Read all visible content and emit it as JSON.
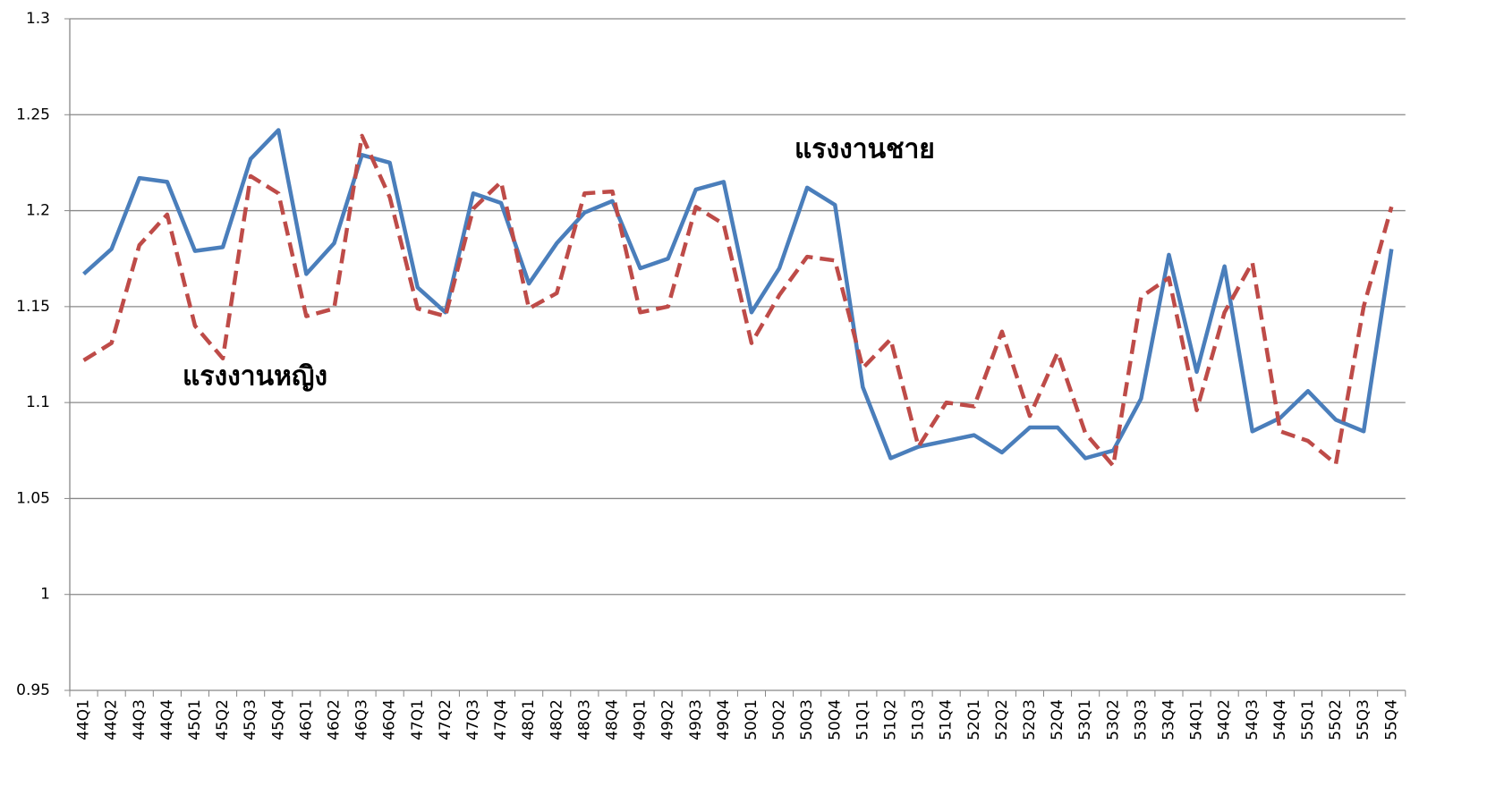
{
  "chart_data": {
    "type": "line",
    "categories": [
      "44Q1",
      "44Q2",
      "44Q3",
      "44Q4",
      "45Q1",
      "45Q2",
      "45Q3",
      "45Q4",
      "46Q1",
      "46Q2",
      "46Q3",
      "46Q4",
      "47Q1",
      "47Q2",
      "47Q3",
      "47Q4",
      "48Q1",
      "48Q2",
      "48Q3",
      "48Q4",
      "49Q1",
      "49Q2",
      "49Q3",
      "49Q4",
      "50Q1",
      "50Q2",
      "50Q3",
      "50Q4",
      "51Q1",
      "51Q2",
      "51Q3",
      "51Q4",
      "52Q1",
      "52Q2",
      "52Q3",
      "52Q4",
      "53Q1",
      "53Q2",
      "53Q3",
      "53Q4",
      "54Q1",
      "54Q2",
      "54Q3",
      "54Q4",
      "55Q1",
      "55Q2",
      "55Q3",
      "55Q4"
    ],
    "series": [
      {
        "name": "แรงงานชาย",
        "color": "#4a7ebb",
        "dashed": false,
        "values": [
          1.167,
          1.18,
          1.217,
          1.215,
          1.179,
          1.181,
          1.227,
          1.242,
          1.167,
          1.183,
          1.229,
          1.225,
          1.16,
          1.147,
          1.209,
          1.204,
          1.162,
          1.183,
          1.199,
          1.205,
          1.17,
          1.175,
          1.211,
          1.215,
          1.147,
          1.17,
          1.212,
          1.203,
          1.108,
          1.071,
          1.077,
          1.08,
          1.083,
          1.074,
          1.087,
          1.087,
          1.071,
          1.075,
          1.102,
          1.177,
          1.116,
          1.171,
          1.085,
          1.092,
          1.106,
          1.091,
          1.085,
          1.18
        ]
      },
      {
        "name": "แรงงานหญิง",
        "color": "#be4b48",
        "dashed": true,
        "values": [
          1.122,
          1.131,
          1.182,
          1.198,
          1.14,
          1.123,
          1.218,
          1.209,
          1.145,
          1.149,
          1.239,
          1.207,
          1.149,
          1.145,
          1.201,
          1.215,
          1.149,
          1.157,
          1.209,
          1.21,
          1.147,
          1.15,
          1.202,
          1.193,
          1.131,
          1.156,
          1.176,
          1.174,
          1.118,
          1.133,
          1.077,
          1.1,
          1.098,
          1.137,
          1.093,
          1.126,
          1.084,
          1.067,
          1.155,
          1.165,
          1.096,
          1.147,
          1.173,
          1.085,
          1.08,
          1.068,
          1.15,
          1.202
        ]
      }
    ],
    "ylim": [
      0.95,
      1.3
    ],
    "yticks": [
      0.95,
      1,
      1.05,
      1.1,
      1.15,
      1.2,
      1.25,
      1.3
    ],
    "grid": true
  }
}
